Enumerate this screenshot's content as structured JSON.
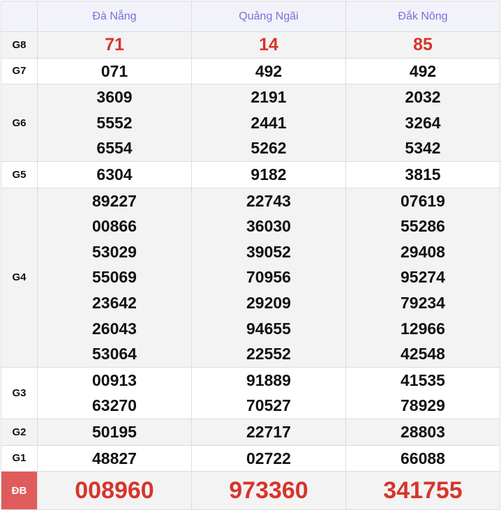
{
  "provinces": [
    "Đà Nẵng",
    "Quảng Ngãi",
    "Đắk Nông"
  ],
  "rows": [
    {
      "label": "G8",
      "values": [
        [
          "71"
        ],
        [
          "14"
        ],
        [
          "85"
        ]
      ]
    },
    {
      "label": "G7",
      "values": [
        [
          "071"
        ],
        [
          "492"
        ],
        [
          "492"
        ]
      ]
    },
    {
      "label": "G6",
      "values": [
        [
          "3609",
          "5552",
          "6554"
        ],
        [
          "2191",
          "2441",
          "5262"
        ],
        [
          "2032",
          "3264",
          "5342"
        ]
      ]
    },
    {
      "label": "G5",
      "values": [
        [
          "6304"
        ],
        [
          "9182"
        ],
        [
          "3815"
        ]
      ]
    },
    {
      "label": "G4",
      "values": [
        [
          "89227",
          "00866",
          "53029",
          "55069",
          "23642",
          "26043",
          "53064"
        ],
        [
          "22743",
          "36030",
          "39052",
          "70956",
          "29209",
          "94655",
          "22552"
        ],
        [
          "07619",
          "55286",
          "29408",
          "95274",
          "79234",
          "12966",
          "42548"
        ]
      ]
    },
    {
      "label": "G3",
      "values": [
        [
          "00913",
          "63270"
        ],
        [
          "91889",
          "70527"
        ],
        [
          "41535",
          "78929"
        ]
      ]
    },
    {
      "label": "G2",
      "values": [
        [
          "50195"
        ],
        [
          "22717"
        ],
        [
          "28803"
        ]
      ]
    },
    {
      "label": "G1",
      "values": [
        [
          "48827"
        ],
        [
          "02722"
        ],
        [
          "66088"
        ]
      ]
    },
    {
      "label": "ĐB",
      "values": [
        [
          "008960"
        ],
        [
          "973360"
        ],
        [
          "341755"
        ]
      ]
    }
  ],
  "colors": {
    "prize_red": "#d8342a",
    "header_text": "#7b6fd6",
    "db_label_bg": "#e05c5c"
  }
}
